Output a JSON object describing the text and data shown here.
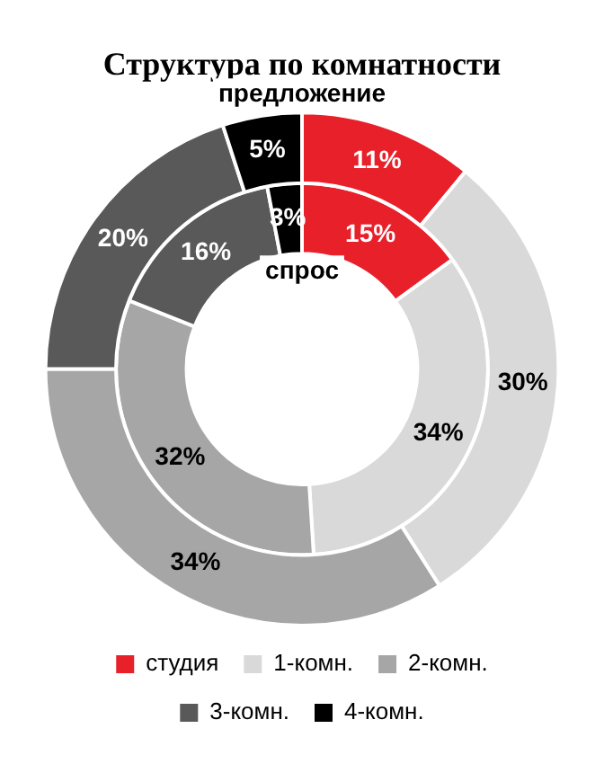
{
  "chart_data": {
    "type": "donut",
    "title": "Структура по комнатности",
    "categories": [
      "студия",
      "1-комн.",
      "2-комн.",
      "3-комн.",
      "4-комн."
    ],
    "series": [
      {
        "name": "предложение",
        "values": [
          11,
          30,
          34,
          20,
          5
        ],
        "value_labels": [
          "11%",
          "30%",
          "34%",
          "20%",
          "5%"
        ],
        "colors": [
          "#e8202a",
          "#d9d9d9",
          "#a6a6a6",
          "#595959",
          "#000000"
        ]
      },
      {
        "name": "спрос",
        "values": [
          15,
          34,
          32,
          16,
          3
        ],
        "value_labels": [
          "15%",
          "34%",
          "32%",
          "16%",
          "3%"
        ],
        "colors": [
          "#e8202a",
          "#d9d9d9",
          "#a6a6a6",
          "#595959",
          "#000000"
        ]
      }
    ],
    "legend": "bottom"
  }
}
